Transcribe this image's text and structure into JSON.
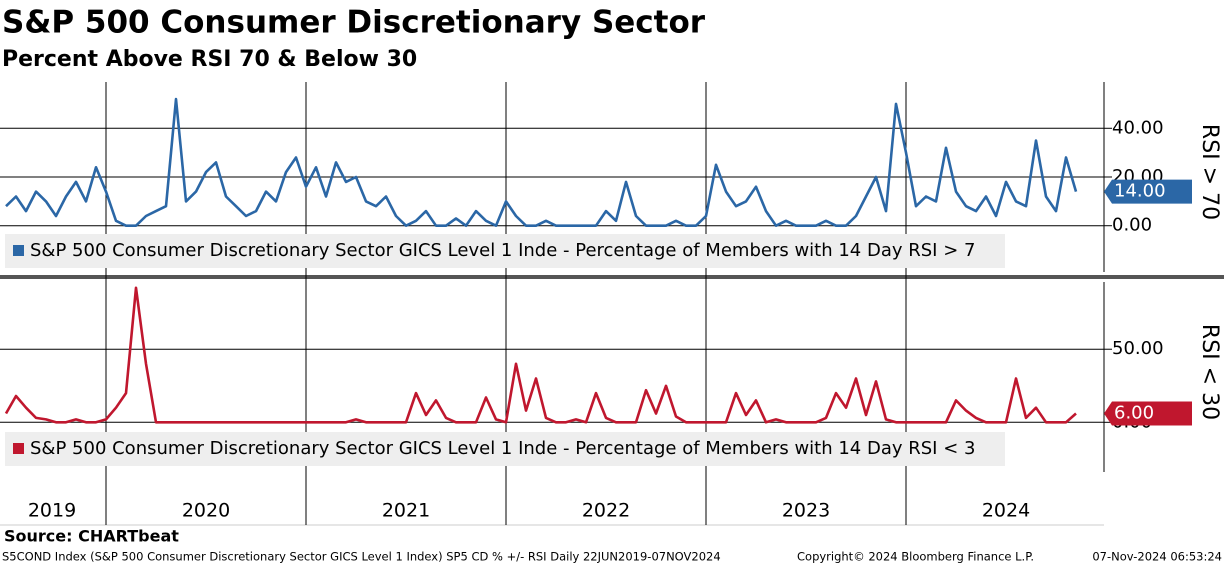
{
  "chart_data": {
    "type": "line",
    "title": "S&P 500 Consumer Discretionary Sector",
    "subtitle": "Percent Above RSI 70 & Below 30",
    "source": "Source: CHARTbeat",
    "footer_left": "S5COND Index (S&P 500 Consumer Discretionary Sector GICS Level 1 Index) SP5 CD % +/- RSI  Daily 22JUN2019-07NOV2024",
    "footer_center": "Copyright© 2024 Bloomberg Finance L.P.",
    "footer_right": "07-Nov-2024 06:53:24",
    "xlim": [
      2019.47,
      2024.99
    ],
    "xticks": [
      2020,
      2021,
      2022,
      2023,
      2024
    ],
    "xtick_labels": [
      {
        "value": 2019.73,
        "label": "2019"
      },
      {
        "value": 2020.5,
        "label": "2020"
      },
      {
        "value": 2021.5,
        "label": "2021"
      },
      {
        "value": 2022.5,
        "label": "2022"
      },
      {
        "value": 2023.5,
        "label": "2023"
      },
      {
        "value": 2024.5,
        "label": "2024"
      }
    ],
    "grid": true,
    "x": [
      2019.5,
      2019.55,
      2019.6,
      2019.65,
      2019.7,
      2019.75,
      2019.8,
      2019.85,
      2019.9,
      2019.95,
      2020.0,
      2020.05,
      2020.1,
      2020.15,
      2020.2,
      2020.25,
      2020.3,
      2020.35,
      2020.4,
      2020.45,
      2020.5,
      2020.55,
      2020.6,
      2020.65,
      2020.7,
      2020.75,
      2020.8,
      2020.85,
      2020.9,
      2020.95,
      2021.0,
      2021.05,
      2021.1,
      2021.15,
      2021.2,
      2021.25,
      2021.3,
      2021.35,
      2021.4,
      2021.45,
      2021.5,
      2021.55,
      2021.6,
      2021.65,
      2021.7,
      2021.75,
      2021.8,
      2021.85,
      2021.9,
      2021.95,
      2022.0,
      2022.05,
      2022.1,
      2022.15,
      2022.2,
      2022.25,
      2022.3,
      2022.35,
      2022.4,
      2022.45,
      2022.5,
      2022.55,
      2022.6,
      2022.65,
      2022.7,
      2022.75,
      2022.8,
      2022.85,
      2022.9,
      2022.95,
      2023.0,
      2023.05,
      2023.1,
      2023.15,
      2023.2,
      2023.25,
      2023.3,
      2023.35,
      2023.4,
      2023.45,
      2023.5,
      2023.55,
      2023.6,
      2023.65,
      2023.7,
      2023.75,
      2023.8,
      2023.85,
      2023.9,
      2023.95,
      2024.0,
      2024.05,
      2024.1,
      2024.15,
      2024.2,
      2024.25,
      2024.3,
      2024.35,
      2024.4,
      2024.45,
      2024.5,
      2024.55,
      2024.6,
      2024.65,
      2024.7,
      2024.75,
      2024.8,
      2024.85
    ],
    "panels": [
      {
        "ylim": [
          -19,
          59
        ],
        "yticks": [
          {
            "value": 0,
            "label": "0.00"
          },
          {
            "value": 20,
            "label": "20.00"
          },
          {
            "value": 40,
            "label": "40.00"
          }
        ],
        "axis_label": "RSI > 70",
        "series": [
          {
            "name": "S&P 500 Consumer Discretionary Sector GICS Level 1 Inde - Percentage of Members with 14 Day RSI > 7",
            "color": "#2b67a6",
            "end_label": "14.00",
            "values": [
              8,
              12,
              6,
              14,
              10,
              4,
              12,
              18,
              10,
              24,
              14,
              2,
              0,
              0,
              4,
              6,
              8,
              52,
              10,
              14,
              22,
              26,
              12,
              8,
              4,
              6,
              14,
              10,
              22,
              28,
              16,
              24,
              12,
              26,
              18,
              20,
              10,
              8,
              12,
              4,
              0,
              2,
              6,
              0,
              0,
              3,
              0,
              6,
              2,
              0,
              10,
              4,
              0,
              0,
              2,
              0,
              0,
              0,
              0,
              0,
              6,
              2,
              18,
              4,
              0,
              0,
              0,
              2,
              0,
              0,
              4,
              25,
              14,
              8,
              10,
              16,
              6,
              0,
              2,
              0,
              0,
              0,
              2,
              0,
              0,
              4,
              12,
              20,
              6,
              50,
              30,
              8,
              12,
              10,
              32,
              14,
              8,
              6,
              12,
              4,
              18,
              10,
              8,
              35,
              12,
              6,
              28,
              14
            ]
          }
        ]
      },
      {
        "ylim": [
          -34,
          96
        ],
        "yticks": [
          {
            "value": 0,
            "label": "0.00"
          },
          {
            "value": 50,
            "label": "50.00"
          }
        ],
        "axis_label": "RSI < 30",
        "series": [
          {
            "name": "S&P 500 Consumer Discretionary Sector GICS Level 1 Inde - Percentage of Members with 14 Day RSI < 3",
            "color": "#c0172e",
            "end_label": "6.00",
            "values": [
              6,
              18,
              10,
              3,
              2,
              0,
              0,
              2,
              0,
              0,
              2,
              10,
              20,
              92,
              40,
              0,
              0,
              0,
              0,
              0,
              0,
              0,
              0,
              0,
              0,
              0,
              0,
              0,
              0,
              0,
              0,
              0,
              0,
              0,
              0,
              2,
              0,
              0,
              0,
              0,
              0,
              20,
              5,
              15,
              3,
              0,
              0,
              0,
              17,
              2,
              0,
              40,
              8,
              30,
              3,
              0,
              0,
              2,
              0,
              20,
              3,
              0,
              0,
              0,
              22,
              6,
              25,
              4,
              0,
              0,
              0,
              0,
              0,
              20,
              5,
              15,
              0,
              2,
              0,
              0,
              0,
              0,
              3,
              20,
              10,
              30,
              5,
              28,
              2,
              0,
              0,
              0,
              0,
              0,
              0,
              15,
              8,
              3,
              0,
              0,
              0,
              30,
              3,
              10,
              0,
              0,
              0,
              6
            ]
          }
        ]
      }
    ]
  }
}
